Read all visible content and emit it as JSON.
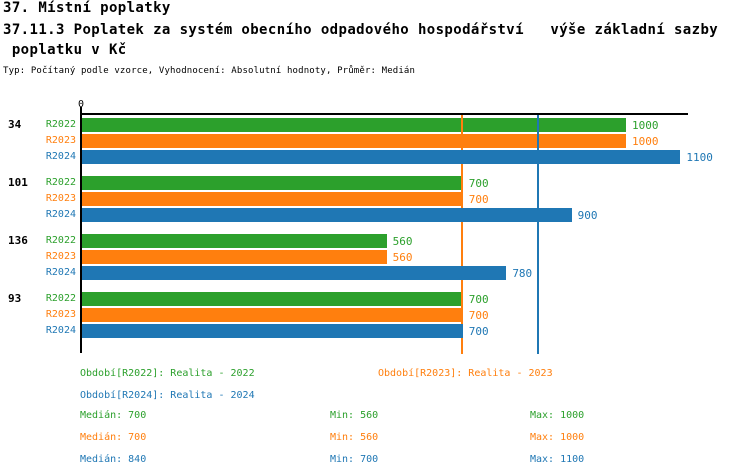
{
  "header": {
    "title_line1": "37. Místní poplatky",
    "title_line2": "37.11.3 Poplatek za systém obecního odpadového hospodářství   výše základní sazby",
    "title_line3": " poplatku v Kč",
    "subtitle": "Typ: Počítaný podle vzorce, Vyhodnocení: Absolutní hodnoty, Průměr: Medián"
  },
  "colors": {
    "green": "#2ca02c",
    "orange": "#ff7f0e",
    "blue": "#1f77b4",
    "axis": "#000000"
  },
  "chart_data": {
    "type": "bar",
    "orientation": "horizontal",
    "title": "37.11.3 Poplatek za systém obecního odpadového hospodářství - výše základní sazby poplatku v Kč",
    "xlabel": "",
    "ylabel": "",
    "xlim": [
      0,
      1116
    ],
    "grid": false,
    "x_axis": {
      "position": "top",
      "tick_labels": [
        "0"
      ]
    },
    "categories": [
      "34",
      "101",
      "136",
      "93"
    ],
    "series": [
      {
        "name": "R2022",
        "color_key": "green",
        "values": [
          1000,
          700,
          560,
          700
        ]
      },
      {
        "name": "R2023",
        "color_key": "orange",
        "values": [
          1000,
          700,
          560,
          700
        ]
      },
      {
        "name": "R2024",
        "color_key": "blue",
        "values": [
          1100,
          900,
          780,
          700
        ]
      }
    ],
    "median_lines": [
      {
        "color_key": "green",
        "value": 700
      },
      {
        "color_key": "orange",
        "value": 700
      },
      {
        "color_key": "blue",
        "value": 840
      }
    ]
  },
  "legend": {
    "periods": [
      {
        "label": "Období[R2022]: Realita - 2022",
        "color_key": "green"
      },
      {
        "label": "Období[R2023]: Realita - 2023",
        "color_key": "orange"
      },
      {
        "label": "Období[R2024]: Realita - 2024",
        "color_key": "blue"
      }
    ],
    "stats": [
      {
        "color_key": "green",
        "median": "Medián: 700",
        "min": "Min: 560",
        "max": "Max: 1000"
      },
      {
        "color_key": "orange",
        "median": "Medián: 700",
        "min": "Min: 560",
        "max": "Max: 1000"
      },
      {
        "color_key": "blue",
        "median": "Medián: 840",
        "min": "Min: 700",
        "max": "Max: 1100"
      }
    ]
  }
}
